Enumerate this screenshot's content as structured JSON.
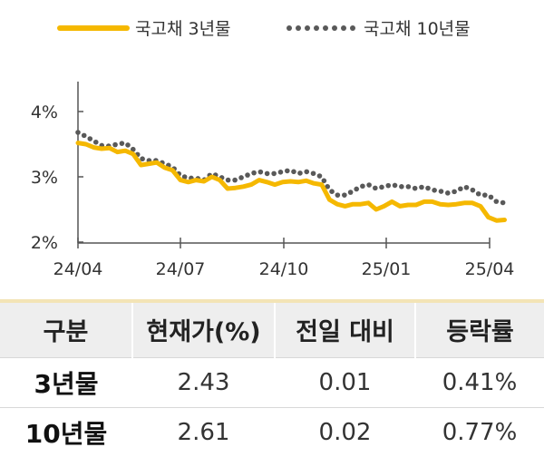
{
  "chart_data": {
    "type": "line",
    "legend": [
      "국고채 3년물",
      "국고채 10년물"
    ],
    "legend_position": "top",
    "x_tick_labels": [
      "24/04",
      "24/07",
      "24/10",
      "25/01",
      "25/04"
    ],
    "y_tick_labels": [
      "4%",
      "3%",
      "2%"
    ],
    "y_ticks": [
      4,
      3,
      2
    ],
    "ylim": [
      2,
      4.3
    ],
    "grid": false,
    "series": [
      {
        "name": "국고채 3년물",
        "style": "solid",
        "color": "#f5b800",
        "points": [
          [
            "2024-04-01",
            3.52
          ],
          [
            "2024-04-08",
            3.5
          ],
          [
            "2024-04-15",
            3.45
          ],
          [
            "2024-04-22",
            3.43
          ],
          [
            "2024-04-29",
            3.44
          ],
          [
            "2024-05-06",
            3.38
          ],
          [
            "2024-05-13",
            3.4
          ],
          [
            "2024-05-20",
            3.35
          ],
          [
            "2024-05-27",
            3.18
          ],
          [
            "2024-06-03",
            3.2
          ],
          [
            "2024-06-10",
            3.22
          ],
          [
            "2024-06-17",
            3.14
          ],
          [
            "2024-06-24",
            3.1
          ],
          [
            "2024-07-01",
            2.95
          ],
          [
            "2024-07-08",
            2.92
          ],
          [
            "2024-07-15",
            2.95
          ],
          [
            "2024-07-22",
            2.93
          ],
          [
            "2024-07-29",
            3.0
          ],
          [
            "2024-08-05",
            2.95
          ],
          [
            "2024-08-12",
            2.82
          ],
          [
            "2024-08-19",
            2.83
          ],
          [
            "2024-08-26",
            2.85
          ],
          [
            "2024-09-02",
            2.88
          ],
          [
            "2024-09-09",
            2.95
          ],
          [
            "2024-09-16",
            2.92
          ],
          [
            "2024-09-23",
            2.88
          ],
          [
            "2024-09-30",
            2.92
          ],
          [
            "2024-10-07",
            2.93
          ],
          [
            "2024-10-14",
            2.92
          ],
          [
            "2024-10-21",
            2.94
          ],
          [
            "2024-10-28",
            2.9
          ],
          [
            "2024-11-04",
            2.88
          ],
          [
            "2024-11-11",
            2.65
          ],
          [
            "2024-11-18",
            2.58
          ],
          [
            "2024-11-25",
            2.55
          ],
          [
            "2024-12-02",
            2.58
          ],
          [
            "2024-12-09",
            2.58
          ],
          [
            "2024-12-16",
            2.6
          ],
          [
            "2024-12-23",
            2.5
          ],
          [
            "2024-12-30",
            2.55
          ],
          [
            "2025-01-06",
            2.62
          ],
          [
            "2025-01-13",
            2.55
          ],
          [
            "2025-01-20",
            2.57
          ],
          [
            "2025-01-27",
            2.57
          ],
          [
            "2025-02-03",
            2.62
          ],
          [
            "2025-02-10",
            2.62
          ],
          [
            "2025-02-17",
            2.58
          ],
          [
            "2025-02-24",
            2.57
          ],
          [
            "2025-03-03",
            2.58
          ],
          [
            "2025-03-10",
            2.6
          ],
          [
            "2025-03-17",
            2.6
          ],
          [
            "2025-03-24",
            2.55
          ],
          [
            "2025-03-31",
            2.38
          ],
          [
            "2025-04-07",
            2.33
          ],
          [
            "2025-04-14",
            2.34
          ]
        ]
      },
      {
        "name": "국고채 10년물",
        "style": "dotted",
        "color": "#595959",
        "points": [
          [
            "2024-04-01",
            3.68
          ],
          [
            "2024-04-08",
            3.62
          ],
          [
            "2024-04-15",
            3.55
          ],
          [
            "2024-04-22",
            3.48
          ],
          [
            "2024-04-29",
            3.47
          ],
          [
            "2024-05-06",
            3.5
          ],
          [
            "2024-05-13",
            3.52
          ],
          [
            "2024-05-20",
            3.42
          ],
          [
            "2024-05-27",
            3.28
          ],
          [
            "2024-06-03",
            3.25
          ],
          [
            "2024-06-10",
            3.25
          ],
          [
            "2024-06-17",
            3.2
          ],
          [
            "2024-06-24",
            3.15
          ],
          [
            "2024-07-01",
            3.02
          ],
          [
            "2024-07-08",
            2.98
          ],
          [
            "2024-07-15",
            2.98
          ],
          [
            "2024-07-22",
            2.95
          ],
          [
            "2024-07-29",
            3.05
          ],
          [
            "2024-08-05",
            3.0
          ],
          [
            "2024-08-12",
            2.95
          ],
          [
            "2024-08-19",
            2.95
          ],
          [
            "2024-08-26",
            3.0
          ],
          [
            "2024-09-02",
            3.05
          ],
          [
            "2024-09-09",
            3.08
          ],
          [
            "2024-09-16",
            3.05
          ],
          [
            "2024-09-23",
            3.05
          ],
          [
            "2024-09-30",
            3.08
          ],
          [
            "2024-10-07",
            3.1
          ],
          [
            "2024-10-14",
            3.05
          ],
          [
            "2024-10-21",
            3.08
          ],
          [
            "2024-10-28",
            3.05
          ],
          [
            "2024-11-04",
            3.0
          ],
          [
            "2024-11-11",
            2.8
          ],
          [
            "2024-11-18",
            2.72
          ],
          [
            "2024-11-25",
            2.72
          ],
          [
            "2024-12-02",
            2.78
          ],
          [
            "2024-12-09",
            2.85
          ],
          [
            "2024-12-16",
            2.88
          ],
          [
            "2024-12-23",
            2.82
          ],
          [
            "2024-12-30",
            2.85
          ],
          [
            "2025-01-06",
            2.88
          ],
          [
            "2025-01-13",
            2.85
          ],
          [
            "2025-01-20",
            2.85
          ],
          [
            "2025-01-27",
            2.82
          ],
          [
            "2025-02-03",
            2.85
          ],
          [
            "2025-02-10",
            2.8
          ],
          [
            "2025-02-17",
            2.78
          ],
          [
            "2025-02-24",
            2.75
          ],
          [
            "2025-03-03",
            2.78
          ],
          [
            "2025-03-10",
            2.85
          ],
          [
            "2025-03-17",
            2.8
          ],
          [
            "2025-03-24",
            2.72
          ],
          [
            "2025-03-31",
            2.72
          ],
          [
            "2025-04-07",
            2.62
          ],
          [
            "2025-04-14",
            2.6
          ]
        ]
      }
    ]
  },
  "table": {
    "headers": [
      "구분",
      "현재가(%)",
      "전일 대비",
      "등락률"
    ],
    "rows": [
      {
        "label": "3년물",
        "current": "2.43",
        "change": "0.01",
        "rate": "0.41%"
      },
      {
        "label": "10년물",
        "current": "2.61",
        "change": "0.02",
        "rate": "0.77%"
      }
    ]
  }
}
